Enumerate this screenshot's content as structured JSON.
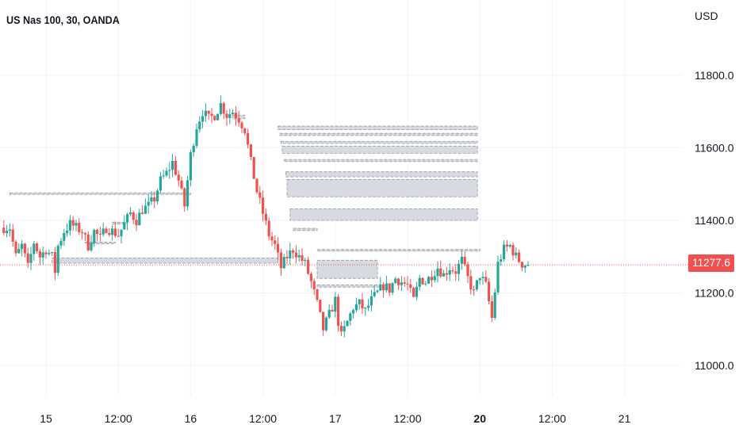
{
  "header": {
    "symbol_title": "US Nas 100, 30, OANDA",
    "currency_label": "USD"
  },
  "last_price": {
    "label": "11277.6",
    "value": 11277.6,
    "color": "#f0504f"
  },
  "colors": {
    "up": "#26a69a",
    "down": "#ef5350",
    "zone_fill": "#d1d4dc",
    "zone_border": "#9598a1",
    "grid": "#f0f3fa"
  },
  "chart_data": {
    "type": "candlestick",
    "title": "US Nas 100, 30, OANDA",
    "ylabel": "USD",
    "ylim": [
      10920,
      11880
    ],
    "grid": true,
    "y_ticks": [
      {
        "value": 11800,
        "label": "11800.0"
      },
      {
        "value": 11600,
        "label": "11600.0"
      },
      {
        "value": 11400,
        "label": "11400.0"
      },
      {
        "value": 11200,
        "label": "11200.0"
      },
      {
        "value": 11000,
        "label": "11000.0"
      }
    ],
    "x_ticks": [
      {
        "t": 0,
        "label": "15",
        "bold": false
      },
      {
        "t": 12,
        "label": "12:00",
        "bold": false
      },
      {
        "t": 24,
        "label": "16",
        "bold": false
      },
      {
        "t": 36,
        "label": "12:00",
        "bold": false
      },
      {
        "t": 48,
        "label": "17",
        "bold": false
      },
      {
        "t": 60,
        "label": "12:00",
        "bold": false
      },
      {
        "t": 72,
        "label": "20",
        "bold": true
      },
      {
        "t": 84,
        "label": "12:00",
        "bold": false
      },
      {
        "t": 96,
        "label": "21",
        "bold": false
      }
    ],
    "path": [
      [
        -6,
        11380
      ],
      [
        -5,
        11300
      ],
      [
        -4,
        11330
      ],
      [
        -3,
        11270
      ],
      [
        -2,
        11340
      ],
      [
        -1,
        11300
      ],
      [
        0,
        11320
      ],
      [
        1,
        11300
      ],
      [
        1.5,
        11260
      ],
      [
        2,
        11330
      ],
      [
        3,
        11370
      ],
      [
        4,
        11390
      ],
      [
        5,
        11380
      ],
      [
        6,
        11370
      ],
      [
        7,
        11330
      ],
      [
        8,
        11370
      ],
      [
        9,
        11350
      ],
      [
        10,
        11380
      ],
      [
        11,
        11370
      ],
      [
        12,
        11360
      ],
      [
        13,
        11390
      ],
      [
        14,
        11420
      ],
      [
        15,
        11400
      ],
      [
        16,
        11430
      ],
      [
        17,
        11440
      ],
      [
        18,
        11460
      ],
      [
        19,
        11510
      ],
      [
        20,
        11530
      ],
      [
        21,
        11560
      ],
      [
        22,
        11510
      ],
      [
        23,
        11440
      ],
      [
        24,
        11580
      ],
      [
        25,
        11660
      ],
      [
        26,
        11700
      ],
      [
        27,
        11680
      ],
      [
        28,
        11690
      ],
      [
        29,
        11720
      ],
      [
        30,
        11690
      ],
      [
        31,
        11700
      ],
      [
        32,
        11680
      ],
      [
        33,
        11650
      ],
      [
        34,
        11560
      ],
      [
        35,
        11480
      ],
      [
        36,
        11420
      ],
      [
        37,
        11360
      ],
      [
        38,
        11330
      ],
      [
        39,
        11270
      ],
      [
        40,
        11300
      ],
      [
        41,
        11320
      ],
      [
        42,
        11300
      ],
      [
        43,
        11280
      ],
      [
        44,
        11230
      ],
      [
        45,
        11170
      ],
      [
        46,
        11100
      ],
      [
        47,
        11140
      ],
      [
        48,
        11180
      ],
      [
        48.5,
        11120
      ],
      [
        49,
        11080
      ],
      [
        50,
        11120
      ],
      [
        51,
        11160
      ],
      [
        52,
        11170
      ],
      [
        53,
        11150
      ],
      [
        54,
        11180
      ],
      [
        55,
        11200
      ],
      [
        56,
        11220
      ],
      [
        57,
        11210
      ],
      [
        58,
        11240
      ],
      [
        59,
        11230
      ],
      [
        60,
        11220
      ],
      [
        61,
        11180
      ],
      [
        62,
        11240
      ],
      [
        63,
        11230
      ],
      [
        64,
        11250
      ],
      [
        65,
        11270
      ],
      [
        66,
        11250
      ],
      [
        67,
        11270
      ],
      [
        68,
        11260
      ],
      [
        69,
        11290
      ],
      [
        70,
        11240
      ],
      [
        71,
        11200
      ],
      [
        72,
        11250
      ],
      [
        73,
        11220
      ],
      [
        74,
        11130
      ],
      [
        75,
        11280
      ],
      [
        76,
        11320
      ],
      [
        77,
        11330
      ],
      [
        78,
        11300
      ],
      [
        79,
        11280
      ],
      [
        80,
        11277.6
      ]
    ],
    "zones": [
      {
        "t1": 38.5,
        "t2": 71.6,
        "y1": 11660,
        "y2": 11650
      },
      {
        "t1": 38.8,
        "t2": 71.6,
        "y1": 11640,
        "y2": 11634
      },
      {
        "t1": 39.0,
        "t2": 71.6,
        "y1": 11618,
        "y2": 11612
      },
      {
        "t1": 39.2,
        "t2": 71.6,
        "y1": 11605,
        "y2": 11585
      },
      {
        "t1": 39.5,
        "t2": 71.6,
        "y1": 11568,
        "y2": 11562
      },
      {
        "t1": 39.8,
        "t2": 71.6,
        "y1": 11534,
        "y2": 11520
      },
      {
        "t1": 40.0,
        "t2": 71.6,
        "y1": 11513,
        "y2": 11465
      },
      {
        "t1": 40.5,
        "t2": 71.6,
        "y1": 11432,
        "y2": 11400
      },
      {
        "t1": 41.0,
        "t2": 45.0,
        "y1": 11378,
        "y2": 11372
      },
      {
        "t1": -6.0,
        "t2": 24.0,
        "y1": 11476,
        "y2": 11473
      },
      {
        "t1": 1.0,
        "t2": 38.5,
        "y1": 11296,
        "y2": 11282
      },
      {
        "t1": 6.5,
        "t2": 11.5,
        "y1": 11340,
        "y2": 11336
      },
      {
        "t1": 11.0,
        "t2": 13.5,
        "y1": 11395,
        "y2": 11390
      },
      {
        "t1": 45.0,
        "t2": 55.0,
        "y1": 11290,
        "y2": 11240
      },
      {
        "t1": 45.0,
        "t2": 72.0,
        "y1": 11320,
        "y2": 11316
      },
      {
        "t1": 45.0,
        "t2": 55.5,
        "y1": 11222,
        "y2": 11216
      },
      {
        "t1": 31.0,
        "t2": 33.0,
        "y1": 11690,
        "y2": 11680
      }
    ]
  }
}
